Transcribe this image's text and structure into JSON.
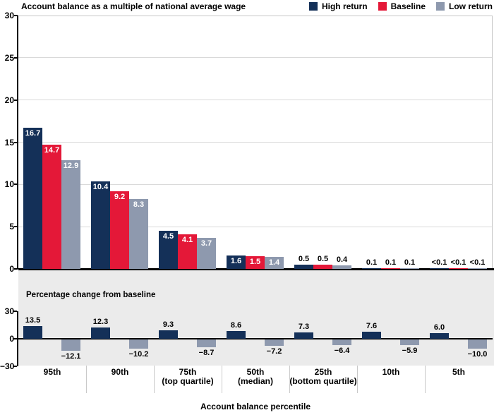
{
  "title": "Account balance as a multiple of national average wage",
  "x_axis_title": "Account balance percentile",
  "colors": {
    "high_return": "#143058",
    "baseline": "#e41838",
    "low_return": "#8e99ae",
    "panel_bg": "#ebebeb",
    "gridline": "#d9d9d9"
  },
  "legend": [
    {
      "label": "High return",
      "color": "#143058"
    },
    {
      "label": "Baseline",
      "color": "#e41838"
    },
    {
      "label": "Low return",
      "color": "#8e99ae"
    }
  ],
  "chart_data": [
    {
      "type": "bar",
      "title": "Account balance as a multiple of national average wage",
      "categories": [
        "95th",
        "90th",
        "75th\n(top quartile)",
        "50th\n(median)",
        "25th\n(bottom quartile)",
        "10th",
        "5th"
      ],
      "series": [
        {
          "name": "High return",
          "color": "#143058",
          "values": [
            "16.7",
            "10.4",
            "4.5",
            "1.6",
            "0.5",
            "0.1",
            "<0.1"
          ]
        },
        {
          "name": "Baseline",
          "color": "#e41838",
          "values": [
            "14.7",
            "9.2",
            "4.1",
            "1.5",
            "0.5",
            "0.1",
            "<0.1"
          ]
        },
        {
          "name": "Low return",
          "color": "#8e99ae",
          "values": [
            "12.9",
            "8.3",
            "3.7",
            "1.4",
            "0.4",
            "0.1",
            "<0.1"
          ]
        }
      ],
      "ylim": [
        0,
        30
      ],
      "yticks": [
        0,
        5,
        10,
        15,
        20,
        25,
        30
      ],
      "grid": true,
      "legend_position": "top-right",
      "xlabel": "Account balance percentile",
      "ylabel": ""
    },
    {
      "type": "bar",
      "title": "Percentage change from baseline",
      "categories": [
        "95th",
        "90th",
        "75th\n(top quartile)",
        "50th\n(median)",
        "25th\n(bottom quartile)",
        "10th",
        "5th"
      ],
      "series": [
        {
          "name": "High return",
          "color": "#143058",
          "values": [
            13.5,
            12.3,
            9.3,
            8.6,
            7.3,
            7.6,
            6.0
          ]
        },
        {
          "name": "Low return",
          "color": "#8e99ae",
          "values": [
            -12.1,
            -10.2,
            -8.7,
            -7.2,
            -6.4,
            -5.9,
            -10.0
          ]
        }
      ],
      "ylim": [
        -30,
        30
      ],
      "yticks": [
        -30,
        0,
        30
      ],
      "grid": false,
      "xlabel": "Account balance percentile",
      "ylabel": ""
    }
  ]
}
